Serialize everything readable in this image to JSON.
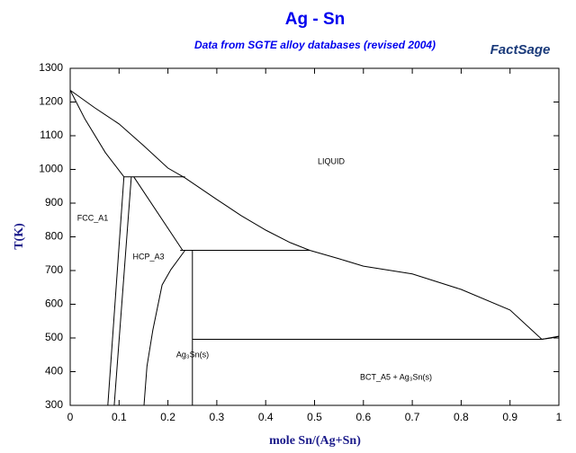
{
  "chart_data": {
    "type": "line",
    "title": "Ag - Sn",
    "subtitle": "Data from SGTE alloy databases (revised 2004)",
    "logo": "FactSage",
    "x_label": "mole Sn/(Ag+Sn)",
    "y_label": "T(K)",
    "color": "#000000",
    "xlim": [
      0,
      1
    ],
    "xticks": [
      0,
      0.1,
      0.2,
      0.3,
      0.4,
      0.5,
      0.6,
      0.7,
      0.8,
      0.9,
      1
    ],
    "ylim": [
      300,
      1300
    ],
    "yticks": [
      300,
      400,
      500,
      600,
      700,
      800,
      900,
      1000,
      1100,
      1200,
      1300
    ],
    "annotations": [
      "LIQUID",
      "FCC_A1",
      "HCP_A3",
      "Ag₃Sn(s)",
      "BCT_A5 + Ag₃Sn(s)"
    ],
    "series": [
      {
        "x": [
          0,
          0.05,
          0.1,
          0.15,
          0.2,
          0.235,
          0.3,
          0.35,
          0.4,
          0.45,
          0.49,
          0.55,
          0.6,
          0.7,
          0.8,
          0.9,
          0.95,
          0.965,
          1
        ],
        "values": [
          1235,
          1183,
          1135,
          1071,
          1004,
          975,
          911,
          863,
          820,
          783,
          760,
          735,
          713,
          690,
          644,
          583,
          516,
          496,
          505
        ]
      },
      {
        "x": [
          0,
          0.03,
          0.072,
          0.11
        ],
        "values": [
          1235,
          1150,
          1050,
          978
        ]
      },
      {
        "x": [
          0.11,
          0.077
        ],
        "values": [
          978,
          300
        ]
      },
      {
        "x": [
          0.125,
          0.09
        ],
        "values": [
          978,
          300
        ]
      },
      {
        "x": [
          0.13,
          0.23
        ],
        "values": [
          978,
          760
        ]
      },
      {
        "x": [
          0.235,
          0.206,
          0.188,
          0.169,
          0.157,
          0.151
        ],
        "values": [
          760,
          703,
          657,
          523,
          416,
          300
        ]
      },
      {
        "x": [
          0.11,
          0.235
        ],
        "values": [
          978,
          978
        ]
      },
      {
        "x": [
          0.225,
          0.49
        ],
        "values": [
          760,
          760
        ]
      },
      {
        "x": [
          0.25,
          0.965
        ],
        "values": [
          496,
          496
        ]
      },
      {
        "x": [
          0.25,
          0.25
        ],
        "values": [
          300,
          760
        ]
      },
      {
        "x": [
          0.965,
          0.985,
          1
        ],
        "values": [
          496,
          500,
          505
        ]
      }
    ]
  }
}
